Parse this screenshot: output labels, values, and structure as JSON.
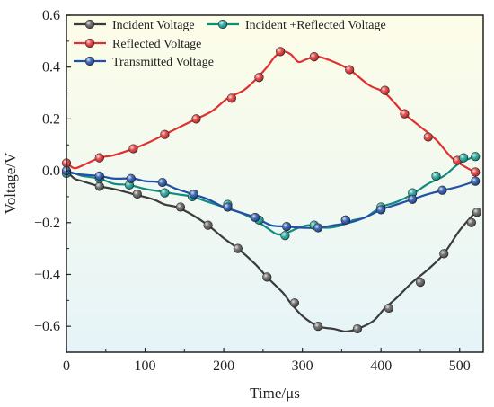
{
  "chart_data": {
    "type": "line",
    "xlabel": "Time/μs",
    "ylabel": "Voltage/V",
    "xlim": [
      0,
      530
    ],
    "ylim": [
      -0.7,
      0.6
    ],
    "x_ticks": [
      0,
      100,
      200,
      300,
      400,
      500
    ],
    "y_ticks": [
      -0.6,
      -0.4,
      -0.2,
      0.0,
      0.2,
      0.4,
      0.6
    ],
    "x_tick_labels": [
      "0",
      "100",
      "200",
      "300",
      "400",
      "500"
    ],
    "y_tick_labels": [
      "−0.6",
      "−0.4",
      "−0.2",
      "0.0",
      "0.2",
      "0.4",
      "0.6"
    ],
    "grid": false,
    "legend_position": "top-left",
    "background_gradient": [
      "#fdfde8",
      "#e6f4f8"
    ],
    "series": [
      {
        "name": "Incident Voltage",
        "color": "#3c3c3c",
        "marker_color": "#5a5a5a",
        "x": [
          0,
          10,
          20,
          42,
          60,
          85,
          110,
          125,
          140,
          160,
          180,
          200,
          218,
          240,
          255,
          275,
          285,
          300,
          320,
          340,
          355,
          370,
          390,
          405,
          420,
          440,
          460,
          480,
          500,
          520
        ],
        "y": [
          0.0,
          -0.03,
          -0.04,
          -0.06,
          -0.07,
          -0.09,
          -0.11,
          -0.13,
          -0.14,
          -0.17,
          -0.21,
          -0.26,
          -0.3,
          -0.36,
          -0.41,
          -0.47,
          -0.51,
          -0.56,
          -0.6,
          -0.61,
          -0.62,
          -0.61,
          -0.58,
          -0.53,
          -0.49,
          -0.43,
          -0.38,
          -0.32,
          -0.23,
          -0.16
        ],
        "marker_x": [
          0,
          42,
          90,
          145,
          180,
          218,
          255,
          290,
          320,
          370,
          410,
          450,
          480,
          515,
          522
        ],
        "marker_y": [
          0.0,
          -0.06,
          -0.09,
          -0.14,
          -0.21,
          -0.3,
          -0.41,
          -0.51,
          -0.6,
          -0.61,
          -0.53,
          -0.43,
          -0.32,
          -0.2,
          -0.16
        ]
      },
      {
        "name": "Reflected Voltage",
        "color": "#e03030",
        "marker_color": "#e03030",
        "x": [
          0,
          10,
          20,
          42,
          60,
          85,
          105,
          125,
          145,
          165,
          185,
          205,
          225,
          240,
          255,
          265,
          275,
          285,
          295,
          305,
          320,
          340,
          360,
          385,
          405,
          430,
          450,
          470,
          490,
          510,
          520
        ],
        "y": [
          0.03,
          0.01,
          0.02,
          0.05,
          0.06,
          0.085,
          0.11,
          0.14,
          0.17,
          0.2,
          0.23,
          0.28,
          0.31,
          0.35,
          0.4,
          0.44,
          0.46,
          0.45,
          0.42,
          0.43,
          0.44,
          0.42,
          0.39,
          0.33,
          0.3,
          0.22,
          0.17,
          0.12,
          0.05,
          0.01,
          -0.005
        ],
        "marker_x": [
          0,
          42,
          85,
          125,
          165,
          210,
          245,
          272,
          315,
          360,
          405,
          430,
          460,
          497,
          520
        ],
        "marker_y": [
          0.03,
          0.05,
          0.085,
          0.14,
          0.2,
          0.28,
          0.36,
          0.46,
          0.44,
          0.39,
          0.31,
          0.22,
          0.13,
          0.04,
          -0.005
        ]
      },
      {
        "name": "Incident +Reflected Voltage",
        "color": "#128a7e",
        "marker_color": "#17a096",
        "x": [
          0,
          10,
          20,
          42,
          60,
          80,
          100,
          120,
          140,
          160,
          180,
          200,
          220,
          240,
          255,
          268,
          280,
          295,
          310,
          330,
          350,
          365,
          380,
          400,
          420,
          440,
          460,
          480,
          500,
          520
        ],
        "y": [
          -0.01,
          -0.01,
          -0.02,
          -0.03,
          -0.05,
          -0.055,
          -0.07,
          -0.08,
          -0.09,
          -0.1,
          -0.12,
          -0.14,
          -0.16,
          -0.19,
          -0.22,
          -0.245,
          -0.24,
          -0.22,
          -0.21,
          -0.22,
          -0.21,
          -0.19,
          -0.18,
          -0.14,
          -0.12,
          -0.09,
          -0.05,
          -0.02,
          0.03,
          0.055
        ],
        "marker_x": [
          0,
          42,
          80,
          125,
          160,
          205,
          245,
          278,
          315,
          355,
          400,
          440,
          470,
          505,
          520
        ],
        "marker_y": [
          -0.01,
          -0.03,
          -0.055,
          -0.085,
          -0.1,
          -0.13,
          -0.19,
          -0.25,
          -0.21,
          -0.19,
          -0.14,
          -0.085,
          -0.02,
          0.05,
          0.055
        ]
      },
      {
        "name": "Transmitted Voltage",
        "color": "#2050a8",
        "marker_color": "#2050a8",
        "x": [
          0,
          10,
          20,
          42,
          60,
          85,
          100,
          120,
          140,
          160,
          180,
          200,
          220,
          240,
          260,
          280,
          300,
          320,
          340,
          360,
          380,
          400,
          420,
          440,
          460,
          480,
          500,
          520
        ],
        "y": [
          0.0,
          -0.01,
          -0.015,
          -0.02,
          -0.03,
          -0.03,
          -0.04,
          -0.045,
          -0.07,
          -0.09,
          -0.11,
          -0.14,
          -0.16,
          -0.18,
          -0.21,
          -0.215,
          -0.22,
          -0.22,
          -0.21,
          -0.2,
          -0.18,
          -0.15,
          -0.13,
          -0.11,
          -0.09,
          -0.075,
          -0.06,
          -0.04
        ],
        "marker_x": [
          0,
          42,
          82,
          122,
          162,
          205,
          240,
          280,
          320,
          355,
          400,
          440,
          478,
          520
        ],
        "marker_y": [
          0.0,
          -0.02,
          -0.03,
          -0.045,
          -0.09,
          -0.14,
          -0.18,
          -0.215,
          -0.22,
          -0.19,
          -0.15,
          -0.11,
          -0.075,
          -0.04
        ]
      }
    ],
    "legend": [
      {
        "label": "Incident Voltage",
        "series": 0,
        "col": 0,
        "row": 0
      },
      {
        "label": "Incident +Reflected Voltage",
        "series": 2,
        "col": 1,
        "row": 0
      },
      {
        "label": "Reflected Voltage",
        "series": 1,
        "col": 0,
        "row": 1
      },
      {
        "label": "Transmitted Voltage",
        "series": 3,
        "col": 0,
        "row": 2
      }
    ]
  }
}
